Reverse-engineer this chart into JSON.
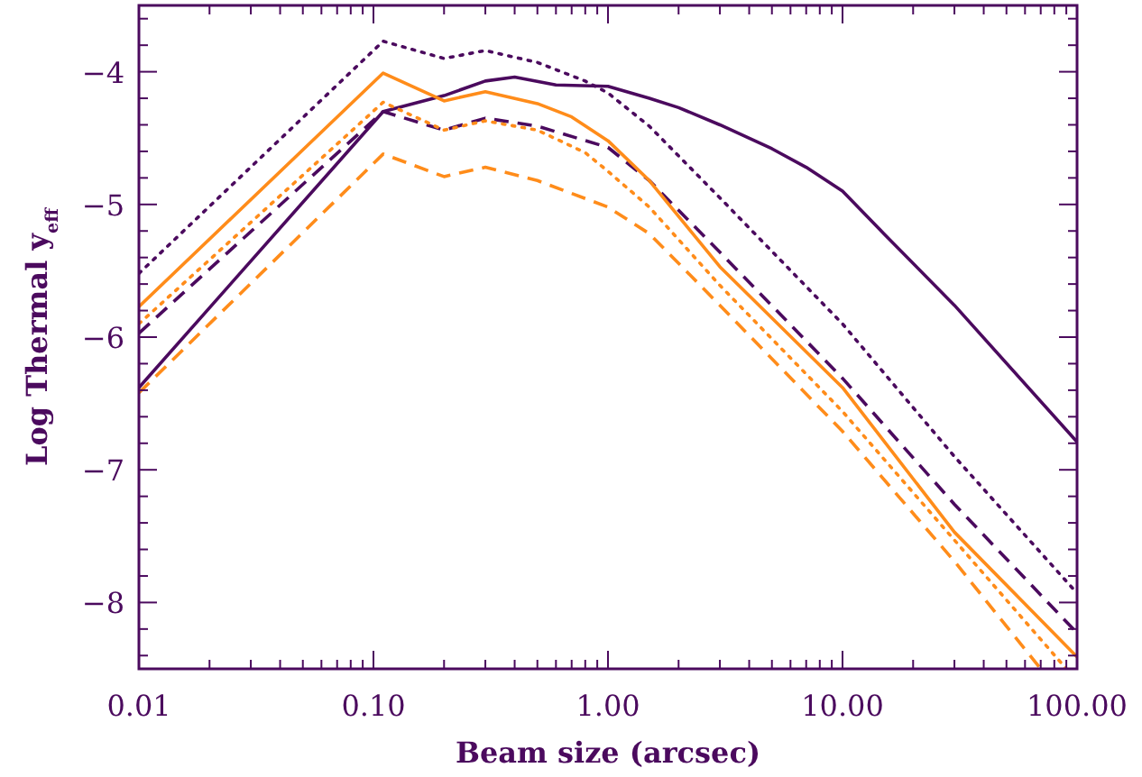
{
  "chart_data": {
    "type": "line",
    "xlabel": "Beam size (arcsec)",
    "ylabel": "Log Thermal y$_{eff}$",
    "log": "x",
    "xlim": [
      0.01,
      100
    ],
    "ylim": [
      -8.5,
      -3.5
    ],
    "xticks": [
      {
        "value": 0.01,
        "label": "0.01"
      },
      {
        "value": 0.02,
        "label": null
      },
      {
        "value": 0.03,
        "label": null
      },
      {
        "value": 0.04,
        "label": null
      },
      {
        "value": 0.05,
        "label": null
      },
      {
        "value": 0.06,
        "label": null
      },
      {
        "value": 0.07,
        "label": null
      },
      {
        "value": 0.08,
        "label": null
      },
      {
        "value": 0.09,
        "label": null
      },
      {
        "value": 0.1,
        "label": "0.10"
      },
      {
        "value": 0.2,
        "label": null
      },
      {
        "value": 0.3,
        "label": null
      },
      {
        "value": 0.4,
        "label": null
      },
      {
        "value": 0.5,
        "label": null
      },
      {
        "value": 0.6,
        "label": null
      },
      {
        "value": 0.7,
        "label": null
      },
      {
        "value": 0.8,
        "label": null
      },
      {
        "value": 0.9,
        "label": null
      },
      {
        "value": 1,
        "label": "1.00"
      },
      {
        "value": 2,
        "label": null
      },
      {
        "value": 3,
        "label": null
      },
      {
        "value": 4,
        "label": null
      },
      {
        "value": 5,
        "label": null
      },
      {
        "value": 6,
        "label": null
      },
      {
        "value": 7,
        "label": null
      },
      {
        "value": 8,
        "label": null
      },
      {
        "value": 9,
        "label": null
      },
      {
        "value": 10,
        "label": "10.00"
      },
      {
        "value": 20,
        "label": null
      },
      {
        "value": 30,
        "label": null
      },
      {
        "value": 40,
        "label": null
      },
      {
        "value": 50,
        "label": null
      },
      {
        "value": 60,
        "label": null
      },
      {
        "value": 70,
        "label": null
      },
      {
        "value": 80,
        "label": null
      },
      {
        "value": 90,
        "label": null
      },
      {
        "value": 100,
        "label": "100.00"
      }
    ],
    "yticks": [
      {
        "value": -8.4,
        "label": null
      },
      {
        "value": -8.2,
        "label": null
      },
      {
        "value": -8,
        "label": "−8"
      },
      {
        "value": -7.8,
        "label": null
      },
      {
        "value": -7.6,
        "label": null
      },
      {
        "value": -7.4,
        "label": null
      },
      {
        "value": -7.2,
        "label": null
      },
      {
        "value": -7,
        "label": "−7"
      },
      {
        "value": -6.8,
        "label": null
      },
      {
        "value": -6.6,
        "label": null
      },
      {
        "value": -6.4,
        "label": null
      },
      {
        "value": -6.2,
        "label": null
      },
      {
        "value": -6,
        "label": "−6"
      },
      {
        "value": -5.8,
        "label": null
      },
      {
        "value": -5.6,
        "label": null
      },
      {
        "value": -5.4,
        "label": null
      },
      {
        "value": -5.2,
        "label": null
      },
      {
        "value": -5,
        "label": "−5"
      },
      {
        "value": -4.8,
        "label": null
      },
      {
        "value": -4.6,
        "label": null
      },
      {
        "value": -4.4,
        "label": null
      },
      {
        "value": -4.2,
        "label": null
      },
      {
        "value": -4,
        "label": "−4"
      },
      {
        "value": -3.8,
        "label": null
      },
      {
        "value": -3.6,
        "label": null
      }
    ],
    "grid": false,
    "marker": "none",
    "series": [
      {
        "color": "#4b0a5e",
        "line_style": "solid",
        "x": [
          0.01,
          0.11,
          0.2,
          0.3,
          0.4,
          0.6,
          1,
          1.5,
          2,
          3,
          5,
          7,
          10,
          15,
          30,
          100
        ],
        "values": [
          -6.38,
          -4.3,
          -4.18,
          -4.07,
          -4.04,
          -4.1,
          -4.11,
          -4.2,
          -4.27,
          -4.4,
          -4.58,
          -4.72,
          -4.9,
          -5.22,
          -5.76,
          -6.79
        ]
      },
      {
        "color": "#4b0a5e",
        "line_style": "dashed",
        "x": [
          0.01,
          0.11,
          0.2,
          0.3,
          0.5,
          1,
          1.5,
          3,
          10,
          30,
          100
        ],
        "values": [
          -5.97,
          -4.3,
          -4.44,
          -4.35,
          -4.41,
          -4.57,
          -4.82,
          -5.36,
          -6.31,
          -7.26,
          -8.23
        ]
      },
      {
        "color": "#4b0a5e",
        "line_style": "dotted",
        "x": [
          0.01,
          0.11,
          0.2,
          0.3,
          0.5,
          0.8,
          1,
          1.5,
          3,
          10,
          30,
          100
        ],
        "values": [
          -5.52,
          -3.77,
          -3.9,
          -3.84,
          -3.93,
          -4.07,
          -4.16,
          -4.41,
          -4.95,
          -5.9,
          -6.9,
          -7.93
        ]
      },
      {
        "color": "#ff8c1a",
        "line_style": "solid",
        "x": [
          0.01,
          0.11,
          0.2,
          0.3,
          0.5,
          0.7,
          1,
          1.5,
          3,
          10,
          30,
          100
        ],
        "values": [
          -5.77,
          -4.01,
          -4.22,
          -4.15,
          -4.24,
          -4.34,
          -4.52,
          -4.82,
          -5.47,
          -6.38,
          -7.47,
          -8.41
        ]
      },
      {
        "color": "#ff8c1a",
        "line_style": "dashed",
        "x": [
          0.01,
          0.11,
          0.2,
          0.3,
          0.5,
          1,
          1.5,
          3,
          10,
          30,
          70
        ],
        "values": [
          -6.42,
          -4.62,
          -4.79,
          -4.72,
          -4.82,
          -5.02,
          -5.22,
          -5.76,
          -6.71,
          -7.69,
          -8.5
        ]
      },
      {
        "color": "#ff8c1a",
        "line_style": "dotted",
        "x": [
          0.01,
          0.11,
          0.2,
          0.3,
          0.5,
          0.8,
          1,
          1.5,
          3,
          10,
          30,
          90
        ],
        "values": [
          -5.9,
          -4.23,
          -4.44,
          -4.37,
          -4.44,
          -4.61,
          -4.75,
          -5.02,
          -5.61,
          -6.56,
          -7.53,
          -8.5
        ]
      }
    ]
  }
}
